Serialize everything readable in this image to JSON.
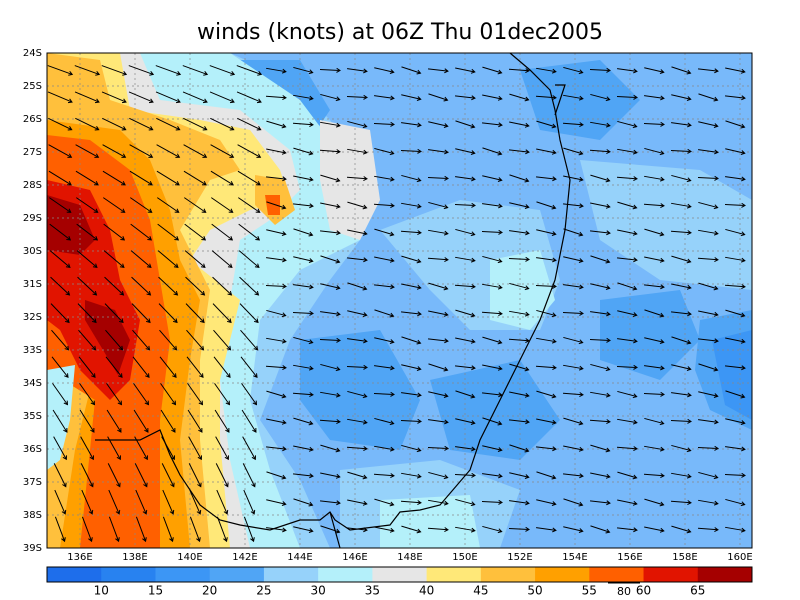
{
  "title": "winds (knots) at 06Z Thu 01dec2005",
  "lat_labels": [
    "24S",
    "25S",
    "26S",
    "27S",
    "28S",
    "29S",
    "30S",
    "31S",
    "32S",
    "33S",
    "34S",
    "35S",
    "36S",
    "37S",
    "38S",
    "39S"
  ],
  "lon_labels": [
    "136E",
    "138E",
    "140E",
    "142E",
    "144E",
    "146E",
    "148E",
    "150E",
    "152E",
    "154E",
    "156E",
    "158E",
    "160E"
  ],
  "colorbar": {
    "labels": [
      "10",
      "15",
      "20",
      "25",
      "30",
      "35",
      "40",
      "45",
      "50",
      "55",
      "60",
      "65"
    ],
    "colors": [
      "#1e6eeb",
      "#2882f0",
      "#3c96f5",
      "#50a5f5",
      "#96d2fa",
      "#b4f0fa",
      "#e6e6e6",
      "#ffe878",
      "#ffc03c",
      "#ffa000",
      "#ff6000",
      "#e11400",
      "#a50000"
    ]
  },
  "reference_vector_label": "80"
}
